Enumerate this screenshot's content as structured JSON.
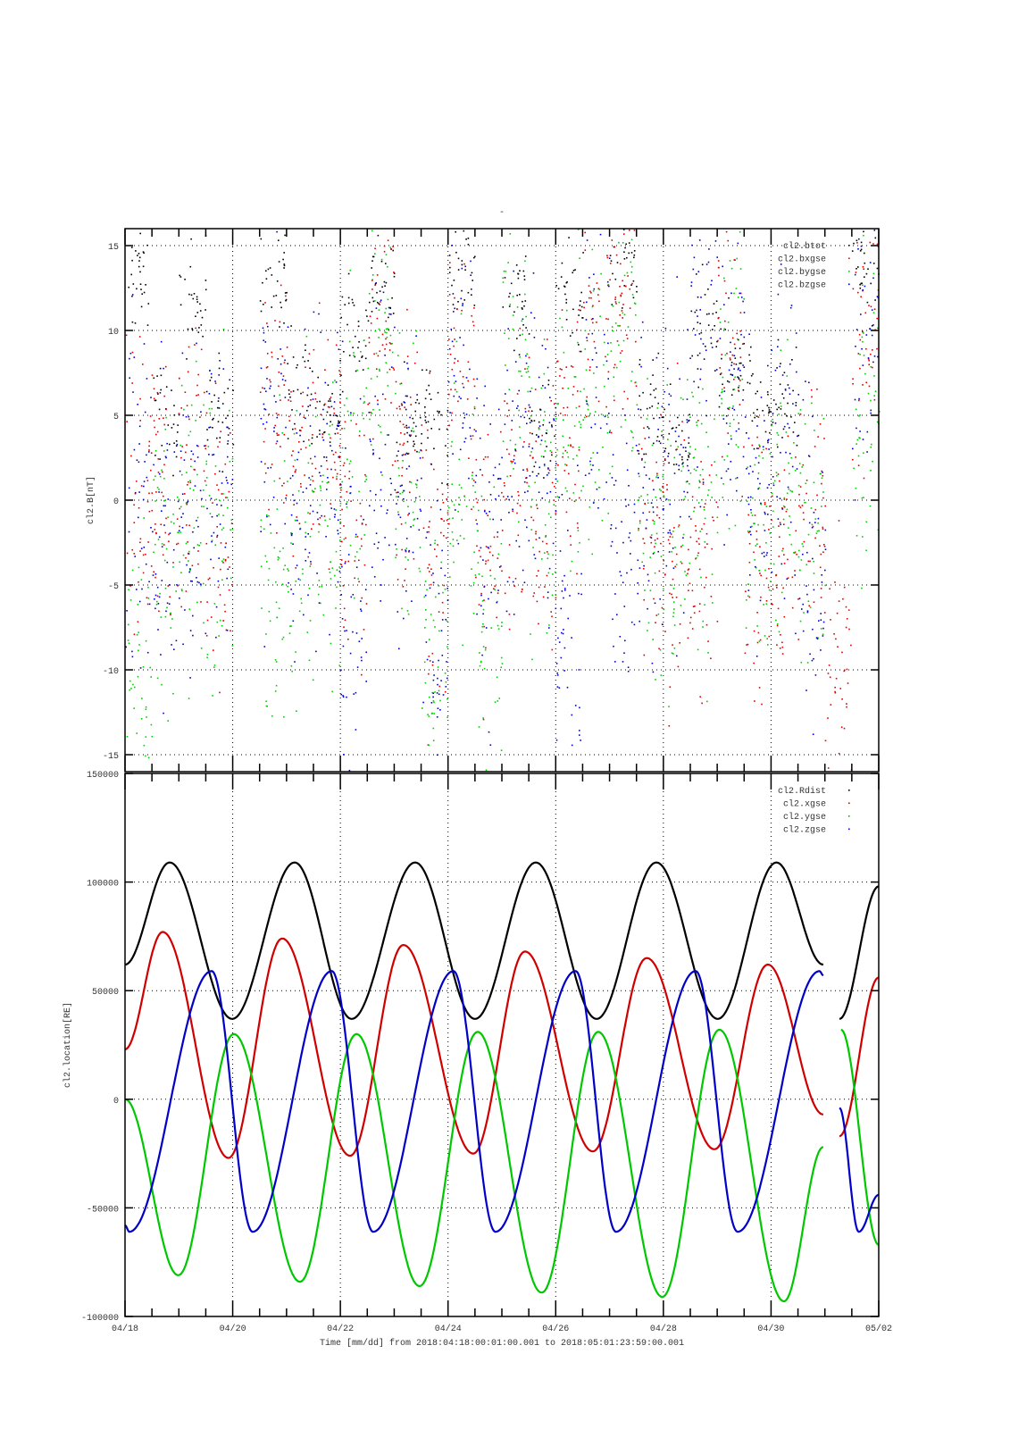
{
  "chart_data": [
    {
      "type": "scatter",
      "title": "-",
      "ylabel": "cl2.B[nT]",
      "ylim": [
        -16,
        16
      ],
      "yticks": [
        "-15",
        "-10",
        "-5",
        "0",
        "5",
        "10",
        "15"
      ],
      "ytick_values": [
        -15,
        -10,
        -5,
        0,
        5,
        10,
        15
      ],
      "xlim_days": [
        18,
        32
      ],
      "grid": true,
      "legend_placement": "top-right",
      "bin_start_day": 18,
      "bin_width_days": 0.5,
      "note": "binned mean values (nT) per half-day, points scattered around mean",
      "series": [
        {
          "name": "cl2.btot",
          "color": "#000000",
          "spread": 1.6,
          "mean": [
            13,
            5,
            12,
            5,
            null,
            13,
            7,
            5,
            10,
            13,
            4,
            5,
            14,
            null,
            12,
            4,
            12,
            null,
            14,
            5,
            3,
            10,
            8,
            6,
            6,
            null,
            null,
            14
          ]
        },
        {
          "name": "cl2.bxgse",
          "color": "#e00000",
          "spread": 4,
          "mean": [
            0,
            1,
            2,
            -2,
            null,
            6,
            3,
            4,
            -2,
            10,
            3,
            -4,
            8,
            -3,
            2,
            0,
            5,
            12,
            10,
            -2,
            -3,
            -4,
            10,
            -3,
            -4,
            0,
            -10,
            10
          ]
        },
        {
          "name": "cl2.bygse",
          "color": "#00d000",
          "spread": 4.5,
          "mean": [
            -10,
            -3,
            0,
            -2,
            null,
            -5,
            -3,
            -2,
            4,
            10,
            0,
            -9,
            0,
            -8,
            8,
            0,
            4,
            5,
            10,
            0,
            -2,
            0,
            8,
            -1,
            0,
            -2,
            null,
            5
          ]
        },
        {
          "name": "cl2.bzgse",
          "color": "#0000d0",
          "spread": 5,
          "mean": [
            0,
            -2,
            -1,
            2,
            null,
            5,
            0,
            2,
            -5,
            4,
            1,
            -8,
            6,
            -2,
            3,
            2,
            -8,
            8,
            -4,
            0,
            2,
            12,
            6,
            2,
            4,
            -5,
            null,
            12
          ]
        }
      ]
    },
    {
      "type": "line",
      "ylabel": "cl2.location[RE]",
      "xlabel": "Time [mm/dd]  from 2018:04:18:00:01:00.001  to  2018:05:01:23:59:00.001",
      "ylim": [
        -100000,
        150000
      ],
      "yticks": [
        "-100000",
        "-50000",
        "0",
        "50000",
        "100000",
        "150000"
      ],
      "ytick_values": [
        -100000,
        -50000,
        0,
        50000,
        100000,
        150000
      ],
      "xlim_days": [
        18,
        32
      ],
      "xticks": [
        "04/18",
        "04/20",
        "04/22",
        "04/24",
        "04/26",
        "04/28",
        "04/30",
        "05/02"
      ],
      "xtick_days": [
        18,
        20,
        22,
        24,
        26,
        28,
        30,
        32
      ],
      "grid": true,
      "legend_placement": "top-right",
      "note": "series given as extrema points [day-of-April, value]; segments separated by data gaps",
      "series": [
        {
          "name": "cl2.Rdist",
          "color": "#000000",
          "segments": [
            [
              [
                18,
                62000
              ],
              [
                18.83,
                109000
              ],
              [
                19.99,
                37000
              ],
              [
                21.15,
                109000
              ],
              [
                22.21,
                37000
              ],
              [
                23.39,
                109000
              ],
              [
                24.5,
                37000
              ],
              [
                25.63,
                109000
              ],
              [
                26.76,
                37000
              ],
              [
                27.87,
                109000
              ],
              [
                29.01,
                37000
              ],
              [
                30.1,
                109000
              ],
              [
                30.97,
                62000
              ]
            ],
            [
              [
                31.27,
                37000
              ],
              [
                32,
                98000
              ]
            ]
          ]
        },
        {
          "name": "cl2.xgse",
          "color": "#d00000",
          "segments": [
            [
              [
                18,
                23000
              ],
              [
                18.7,
                77000
              ],
              [
                19.92,
                -27000
              ],
              [
                20.92,
                74000
              ],
              [
                22.18,
                -26000
              ],
              [
                23.17,
                71000
              ],
              [
                24.47,
                -25000
              ],
              [
                25.43,
                68000
              ],
              [
                26.69,
                -24000
              ],
              [
                27.69,
                65000
              ],
              [
                28.95,
                -23000
              ],
              [
                29.94,
                62000
              ],
              [
                30.97,
                -7000
              ]
            ],
            [
              [
                31.27,
                -17000
              ],
              [
                32,
                56000
              ]
            ]
          ]
        },
        {
          "name": "cl2.ygse",
          "color": "#00c800",
          "segments": [
            [
              [
                18,
                0
              ],
              [
                18.99,
                -81000
              ],
              [
                20.02,
                30000
              ],
              [
                21.25,
                -84000
              ],
              [
                22.3,
                30000
              ],
              [
                23.47,
                -86000
              ],
              [
                24.55,
                31000
              ],
              [
                25.74,
                -89000
              ],
              [
                26.79,
                31000
              ],
              [
                27.98,
                -91000
              ],
              [
                29.04,
                32000
              ],
              [
                30.24,
                -93000
              ],
              [
                30.97,
                -22000
              ]
            ],
            [
              [
                31.3,
                32000
              ],
              [
                32,
                -67000
              ]
            ]
          ]
        },
        {
          "name": "cl2.zgse",
          "color": "#0000c8",
          "segments": [
            [
              [
                18,
                -58000
              ],
              [
                18.08,
                -61000
              ],
              [
                19.61,
                59000
              ],
              [
                20.37,
                -61000
              ],
              [
                21.84,
                59000
              ],
              [
                22.61,
                -61000
              ],
              [
                24.1,
                59000
              ],
              [
                24.88,
                -61000
              ],
              [
                26.37,
                59000
              ],
              [
                27.12,
                -61000
              ],
              [
                28.6,
                59000
              ],
              [
                29.38,
                -61000
              ],
              [
                30.9,
                59000
              ],
              [
                30.97,
                57000
              ]
            ],
            [
              [
                31.27,
                -4000
              ],
              [
                31.63,
                -61000
              ],
              [
                32,
                -44000
              ]
            ]
          ]
        }
      ]
    }
  ]
}
